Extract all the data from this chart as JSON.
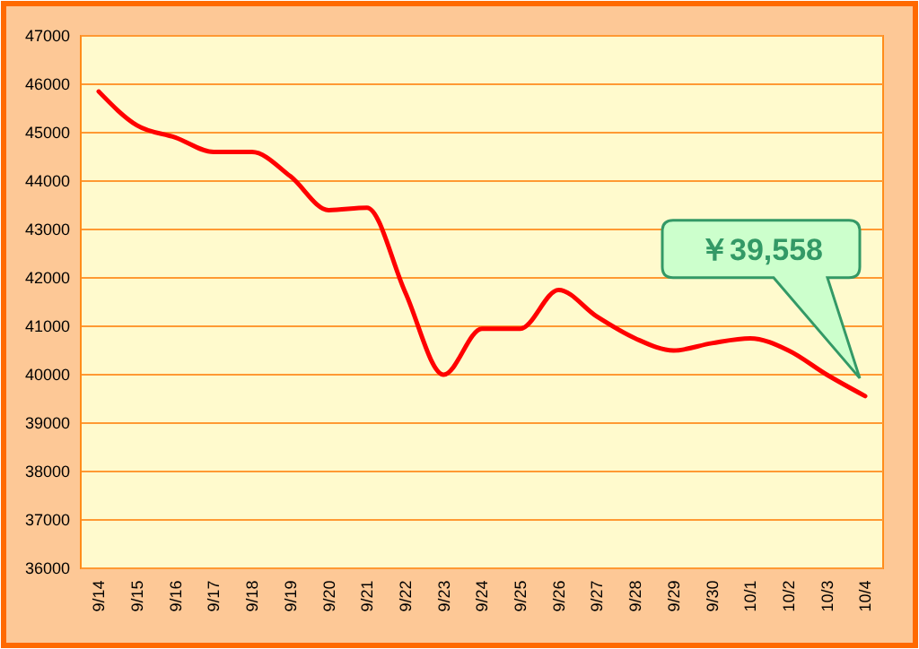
{
  "chart_data": {
    "type": "line",
    "categories": [
      "9/14",
      "9/15",
      "9/16",
      "9/17",
      "9/18",
      "9/19",
      "9/20",
      "9/21",
      "9/22",
      "9/23",
      "9/24",
      "9/25",
      "9/26",
      "9/27",
      "9/28",
      "9/29",
      "9/30",
      "10/1",
      "10/2",
      "10/3",
      "10/4"
    ],
    "series": [
      {
        "color": "#ff0000",
        "values": [
          45850,
          45150,
          44900,
          44600,
          44600,
          44100,
          43400,
          43450,
          41700,
          40000,
          40950,
          40950,
          41750,
          41200,
          40750,
          40500,
          40650,
          40750,
          40500,
          40000,
          39558
        ]
      }
    ],
    "ylim": [
      36000,
      47000
    ],
    "yticks": [
      36000,
      37000,
      38000,
      39000,
      40000,
      41000,
      42000,
      43000,
      44000,
      45000,
      46000,
      47000
    ],
    "grid": "y",
    "marker": "none",
    "line_style": "solid",
    "annotations": [
      "￥39,558"
    ]
  }
}
